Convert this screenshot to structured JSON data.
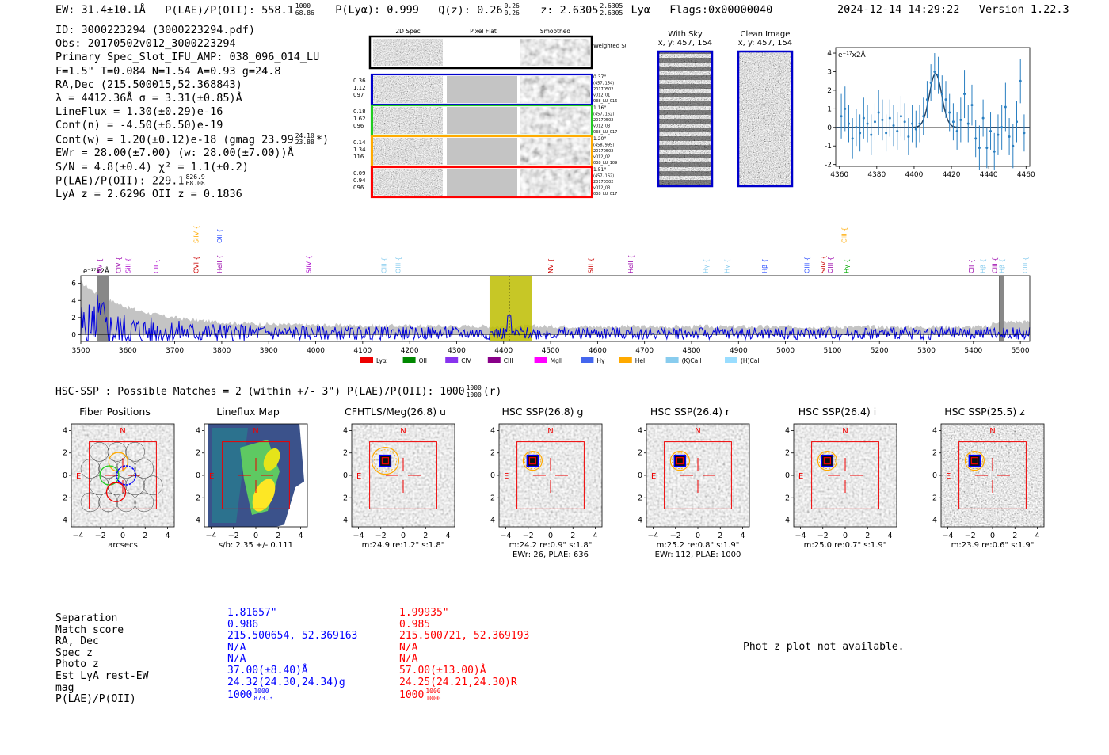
{
  "header": {
    "ew": "EW: 31.4±10.1Å",
    "plae_label": "P(LAE)/P(OII): 558.1",
    "plae_hi": "1000",
    "plae_lo": "68.86",
    "plya": "P(Lyα): 0.999",
    "qz": "Q(z): 0.26",
    "qz_hi": "0.26",
    "qz_lo": "0.26",
    "z": "z: 2.6305",
    "z_hi": "2.6305",
    "z_lo": "2.6305",
    "line": "Lyα",
    "flags": "Flags:0x00000040",
    "timestamp": "2024-12-14 14:29:22",
    "version": "Version 1.22.3"
  },
  "info": {
    "id": "ID: 3000223294 (3000223294.pdf)",
    "obs": "Obs: 20170502v012_3000223294",
    "primary": "Primary Spec_Slot_IFU_AMP: 038_096_014_LU",
    "fwhm": "F=1.5\"  T=0.084  N=1.54  A=0.93  g=24.8",
    "radec": "RA,Dec (215.500015,52.368843)",
    "lambda": "λ = 4412.36Å  σ = 3.31(±0.85)Å",
    "lineflux": "LineFlux = 1.30(±0.29)e-16",
    "contn": "Cont(n) = -4.50(±6.50)e-19",
    "contw": "Cont(w) = 1.20(±0.12)e-18 (gmag 23.99",
    "contw_hi": "24.10",
    "contw_lo": "23.88",
    "contw_end": "*)",
    "ewr": "EWr = 28.00(±7.00) (w: 28.00(±7.00))Å",
    "sn": "S/N = 4.8(±0.4)  χ² = 1.1(±0.2)",
    "plae": "P(LAE)/P(OII): 229.1",
    "plae_hi": "826.9",
    "plae_lo": "68.08",
    "lyaz": "LyA z = 2.6296  OII z = 0.1836"
  },
  "cutouts": {
    "col_headers": [
      "2D Spec",
      "Pixel Flat",
      "Smoothed"
    ],
    "weighted_sum": "Weighted Sum",
    "rows": [
      {
        "left": [
          "0.36",
          "1.12",
          "097"
        ],
        "right": [
          "0.37\"",
          "(457, 154)",
          "20170502",
          "v012_01",
          "038_LU_016"
        ],
        "color": "#0000cc"
      },
      {
        "left": [
          "0.18",
          "1.62",
          "096"
        ],
        "right": [
          "1.16\"",
          "(457, 162)",
          "20170502",
          "v012_03",
          "038_LU_017"
        ],
        "color": "#22cc22"
      },
      {
        "left": [
          "0.14",
          "1.34",
          "116"
        ],
        "right": [
          "1.20\"",
          "(458, 995)",
          "20170502",
          "v012_02",
          "038_LU_109"
        ],
        "color": "#ffaa00"
      },
      {
        "left": [
          "0.09",
          "0.94",
          "096"
        ],
        "right": [
          "1.51\"",
          "(457, 162)",
          "20170502",
          "v012_03",
          "038_LU_017"
        ],
        "color": "#ff0000"
      }
    ]
  },
  "sky_images": {
    "with_sky": "With Sky",
    "with_sky_xy": "x, y: 457, 154",
    "clean": "Clean Image",
    "clean_xy": "x, y: 457, 154"
  },
  "zoom_chart": {
    "ylabel": "e⁻¹⁷x2Å",
    "yticks": [
      4,
      3,
      2,
      1,
      0,
      -1,
      -2
    ],
    "xticks": [
      4360,
      4380,
      4400,
      4420,
      4440,
      4460
    ],
    "xlim": [
      4358,
      4462
    ],
    "ylim": [
      -2.1,
      4.3
    ],
    "points": [
      [
        4361,
        0.6,
        1.2
      ],
      [
        4363,
        1.0,
        1.2
      ],
      [
        4365,
        0.2,
        1.0
      ],
      [
        4367,
        -0.6,
        1.1
      ],
      [
        4369,
        0.0,
        1.0
      ],
      [
        4371,
        -0.3,
        1.0
      ],
      [
        4373,
        0.5,
        1.1
      ],
      [
        4375,
        0.2,
        1.0
      ],
      [
        4377,
        -0.4,
        1.1
      ],
      [
        4379,
        0.3,
        1.0
      ],
      [
        4381,
        0.8,
        1.2
      ],
      [
        4383,
        0.4,
        1.1
      ],
      [
        4385,
        -0.3,
        1.0
      ],
      [
        4387,
        0.5,
        1.0
      ],
      [
        4389,
        0.1,
        1.1
      ],
      [
        4391,
        -0.2,
        1.0
      ],
      [
        4393,
        0.6,
        1.1
      ],
      [
        4395,
        0.3,
        1.0
      ],
      [
        4397,
        -0.5,
        1.0
      ],
      [
        4399,
        0.2,
        1.0
      ],
      [
        4401,
        -0.1,
        1.0
      ],
      [
        4403,
        0.2,
        1.0
      ],
      [
        4405,
        0.6,
        1.0
      ],
      [
        4407,
        1.5,
        1.0
      ],
      [
        4409,
        2.4,
        1.0
      ],
      [
        4411,
        3.0,
        1.0
      ],
      [
        4413,
        2.8,
        1.0
      ],
      [
        4415,
        1.8,
        1.0
      ],
      [
        4417,
        1.5,
        1.0
      ],
      [
        4419,
        0.8,
        1.0
      ],
      [
        4421,
        0.3,
        1.0
      ],
      [
        4423,
        -0.2,
        1.0
      ],
      [
        4425,
        0.4,
        1.2
      ],
      [
        4427,
        1.8,
        1.3
      ],
      [
        4429,
        0.2,
        1.0
      ],
      [
        4431,
        1.2,
        1.1
      ],
      [
        4433,
        -0.6,
        1.0
      ],
      [
        4435,
        -1.1,
        1.2
      ],
      [
        4437,
        0.5,
        1.0
      ],
      [
        4439,
        -1.1,
        1.1
      ],
      [
        4441,
        -0.2,
        1.0
      ],
      [
        4443,
        -1.3,
        1.0
      ],
      [
        4445,
        -0.4,
        1.1
      ],
      [
        4447,
        0.0,
        1.2
      ],
      [
        4449,
        1.1,
        1.3
      ],
      [
        4451,
        -0.5,
        1.0
      ],
      [
        4453,
        -1.0,
        1.2
      ],
      [
        4455,
        0.3,
        1.1
      ],
      [
        4457,
        2.5,
        1.2
      ],
      [
        4459,
        -0.3,
        1.0
      ]
    ],
    "fit": {
      "center": 4411.5,
      "sigma": 3.3,
      "amp": 2.9
    }
  },
  "spectrum": {
    "ylabel": "e⁻¹⁷x2Å",
    "yticks": [
      6,
      4,
      2,
      0
    ],
    "xticks": [
      3500,
      3600,
      3700,
      3800,
      3900,
      4000,
      4100,
      4200,
      4300,
      4400,
      4500,
      4600,
      4700,
      4800,
      4900,
      5000,
      5100,
      5200,
      5300,
      5400,
      5500
    ],
    "xlim": [
      3500,
      5520
    ],
    "ylim": [
      -0.8,
      6.9
    ],
    "highlight": [
      4370,
      4460
    ],
    "line_center": 4412,
    "lines": [
      {
        "name": "NV",
        "wave": 3540,
        "color": "#9900aa",
        "row": 1
      },
      {
        "name": "CIV",
        "wave": 3580,
        "color": "#9900aa",
        "row": 1
      },
      {
        "name": "SiII",
        "wave": 3600,
        "color": "#aa00cc",
        "row": 1
      },
      {
        "name": "CII",
        "wave": 3660,
        "color": "#aa00cc",
        "row": 1
      },
      {
        "name": "OVI",
        "wave": 3745,
        "color": "#cc0000",
        "row": 1
      },
      {
        "name": "SiIV",
        "wave": 3745,
        "color": "#ffaa00",
        "row": 0
      },
      {
        "name": "HeII",
        "wave": 3795,
        "color": "#9900aa",
        "row": 1
      },
      {
        "name": "OII",
        "wave": 3795,
        "color": "#3355ff",
        "row": 0
      },
      {
        "name": "SiIV",
        "wave": 3985,
        "color": "#aa00cc",
        "row": 1
      },
      {
        "name": "CIII",
        "wave": 4145,
        "color": "#88ccee",
        "row": 1
      },
      {
        "name": "OIII",
        "wave": 4175,
        "color": "#88ccee",
        "row": 1
      },
      {
        "name": "NV",
        "wave": 4500,
        "color": "#cc0000",
        "row": 1
      },
      {
        "name": "SiII",
        "wave": 4585,
        "color": "#cc0000",
        "row": 1
      },
      {
        "name": "HeII",
        "wave": 4670,
        "color": "#9900aa",
        "row": 1
      },
      {
        "name": "Hγ",
        "wave": 4830,
        "color": "#88ccee",
        "row": 1
      },
      {
        "name": "Hγ",
        "wave": 4875,
        "color": "#88ccee",
        "row": 1
      },
      {
        "name": "Hβ",
        "wave": 4955,
        "color": "#3355ff",
        "row": 1
      },
      {
        "name": "OIII",
        "wave": 5045,
        "color": "#3355ff",
        "row": 1
      },
      {
        "name": "SiIV",
        "wave": 5080,
        "color": "#cc0000",
        "row": 1
      },
      {
        "name": "OIII",
        "wave": 5095,
        "color": "#9900aa",
        "row": 1
      },
      {
        "name": "CIII",
        "wave": 5125,
        "color": "#ffaa00",
        "row": 0
      },
      {
        "name": "Hγ",
        "wave": 5130,
        "color": "#00aa00",
        "row": 1
      },
      {
        "name": "CII",
        "wave": 5395,
        "color": "#9900aa",
        "row": 1
      },
      {
        "name": "Hβ",
        "wave": 5420,
        "color": "#88ccee",
        "row": 1
      },
      {
        "name": "CIII",
        "wave": 5445,
        "color": "#9900aa",
        "row": 1
      },
      {
        "name": "Hβ",
        "wave": 5460,
        "color": "#88ccee",
        "row": 1
      },
      {
        "name": "OIII",
        "wave": 5510,
        "color": "#88ccee",
        "row": 1
      }
    ],
    "legend": [
      {
        "label": "Lyα",
        "color": "#ee0000"
      },
      {
        "label": "OII",
        "color": "#008800"
      },
      {
        "label": "CIV",
        "color": "#8833ee"
      },
      {
        "label": "CIII",
        "color": "#880088"
      },
      {
        "label": "MgII",
        "color": "#ff00ff"
      },
      {
        "label": "Hγ",
        "color": "#4466ee"
      },
      {
        "label": "HeII",
        "color": "#ffaa00"
      },
      {
        "label": "(K)CaII",
        "color": "#88ccee"
      },
      {
        "label": "(H)CaII",
        "color": "#99ddff"
      }
    ]
  },
  "hsc": {
    "title": "HSC-SSP : Possible Matches = 2 (within +/- 3\")  P(LAE)/P(OII): 1000",
    "plae_hi": "1000",
    "plae_lo": "1000",
    "band": "(r)"
  },
  "panels": [
    {
      "title": "Fiber Positions",
      "caption": "arcsecs",
      "caption2": "",
      "kind": "fiber"
    },
    {
      "title": "Lineflux Map",
      "caption": "s/b: 2.35 +/- 0.111",
      "caption2": "",
      "kind": "lineflux"
    },
    {
      "title": "CFHTLS/Meg(26.8) u",
      "caption": "m:24.9  re:1.2\"  s:1.8\"",
      "caption2": "",
      "kind": "img"
    },
    {
      "title": "HSC SSP(26.8) g",
      "caption": "m:24.2  re:0.9\"  s:1.8\"",
      "caption2": "EWr: 26, PLAE: 636",
      "kind": "img"
    },
    {
      "title": "HSC SSP(26.4) r",
      "caption": "m:25.2  re:0.8\"  s:1.9\"",
      "caption2": "EWr: 112, PLAE: 1000",
      "kind": "img"
    },
    {
      "title": "HSC SSP(26.4) i",
      "caption": "m:25.0  re:0.7\"  s:1.9\"",
      "caption2": "",
      "kind": "img"
    },
    {
      "title": "HSC SSP(25.5) z",
      "caption": "m:23.9  re:0.6\"  s:1.9\"",
      "caption2": "",
      "kind": "img"
    }
  ],
  "panel_axis": {
    "ticks": [
      "4",
      "2",
      "0",
      "−2",
      "−4"
    ],
    "xticks": [
      "−4",
      "−2",
      "0",
      "2",
      "4"
    ],
    "north": "N",
    "east": "E"
  },
  "matches": {
    "labels": [
      "Separation",
      "Match score",
      "RA, Dec",
      "Spec z",
      "Photo z",
      "Est LyA rest-EW",
      "mag",
      "P(LAE)/P(OII)"
    ],
    "blue": [
      "1.81657\"",
      "0.986",
      "215.500654, 52.369163",
      "N/A",
      "N/A",
      "37.00(±8.40)Å",
      "24.32(24.30,24.34)g",
      "1000"
    ],
    "blue_plae_hi": "1000",
    "blue_plae_lo": "873.3",
    "red": [
      "1.99935\"",
      "0.985",
      "215.500721, 52.369193",
      "N/A",
      "N/A",
      "57.00(±13.00)Å",
      "24.25(24.21,24.30)R",
      "1000"
    ],
    "red_plae_hi": "1000",
    "red_plae_lo": "1000"
  },
  "photz_note": "Phot z plot not available."
}
